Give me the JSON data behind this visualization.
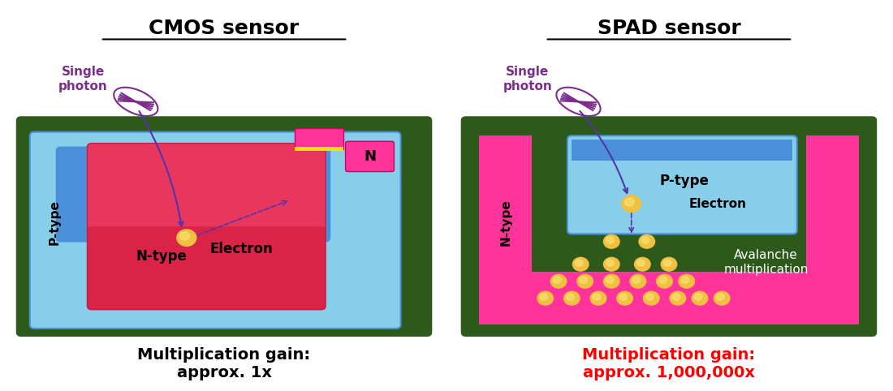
{
  "bg_color": "#ffffff",
  "dark_green": "#2d5a1b",
  "light_blue": "#87ceeb",
  "blue": "#4a90d9",
  "hot_pink": "#ff3399",
  "gold_light": "#f0c040",
  "purple": "#7b2d8b",
  "cmos_title": "CMOS sensor",
  "spad_title": "SPAD sensor",
  "cmos_gain": "Multiplication gain:\napprox. 1x",
  "spad_gain": "Multiplication gain:\napprox. 1,000,000x",
  "photon_label": "Single\nphoton",
  "electron_label": "Electron",
  "ntype_label": "N-type",
  "ptype_label_cmos": "P-type",
  "ptype_label_spad": "P-type",
  "ntype_label_spad": "N-type",
  "avalanche_label": "Avalanche\nmultiplication",
  "n_label": "N"
}
